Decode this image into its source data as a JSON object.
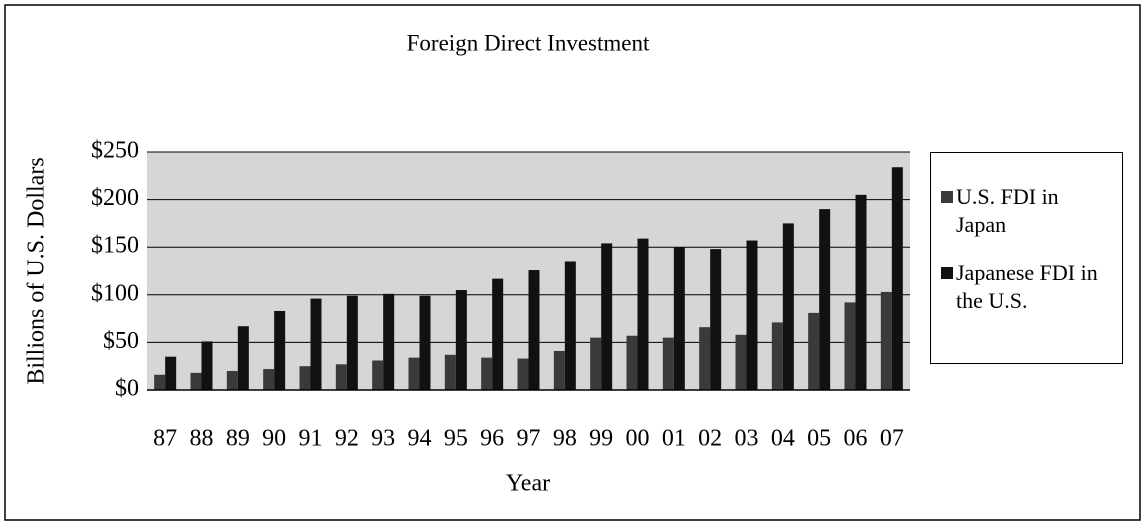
{
  "chart_data": {
    "type": "bar",
    "title": "Foreign Direct Investment",
    "x_label": "Year",
    "y_label": "Billions of U.S. Dollars",
    "categories": [
      "87",
      "88",
      "89",
      "90",
      "91",
      "92",
      "93",
      "94",
      "95",
      "96",
      "97",
      "98",
      "99",
      "00",
      "01",
      "02",
      "03",
      "04",
      "05",
      "06",
      "07"
    ],
    "series": [
      {
        "name": "U.S. FDI in Japan",
        "color": "#3a3a3a",
        "values": [
          16,
          18,
          20,
          22,
          25,
          27,
          31,
          34,
          37,
          34,
          33,
          41,
          55,
          57,
          55,
          66,
          58,
          71,
          81,
          92,
          103
        ]
      },
      {
        "name": "Japanese FDI in the U.S.",
        "color": "#111111",
        "values": [
          35,
          51,
          67,
          83,
          96,
          99,
          101,
          99,
          105,
          117,
          126,
          135,
          154,
          159,
          150,
          148,
          157,
          175,
          190,
          205,
          234
        ]
      }
    ],
    "ylim": [
      0,
      250
    ],
    "yticks": [
      {
        "value": 0,
        "label": "$0"
      },
      {
        "value": 50,
        "label": "$50"
      },
      {
        "value": 100,
        "label": "$100"
      },
      {
        "value": 150,
        "label": "$150"
      },
      {
        "value": 200,
        "label": "$200"
      },
      {
        "value": 250,
        "label": "$250"
      }
    ],
    "grid": true
  }
}
